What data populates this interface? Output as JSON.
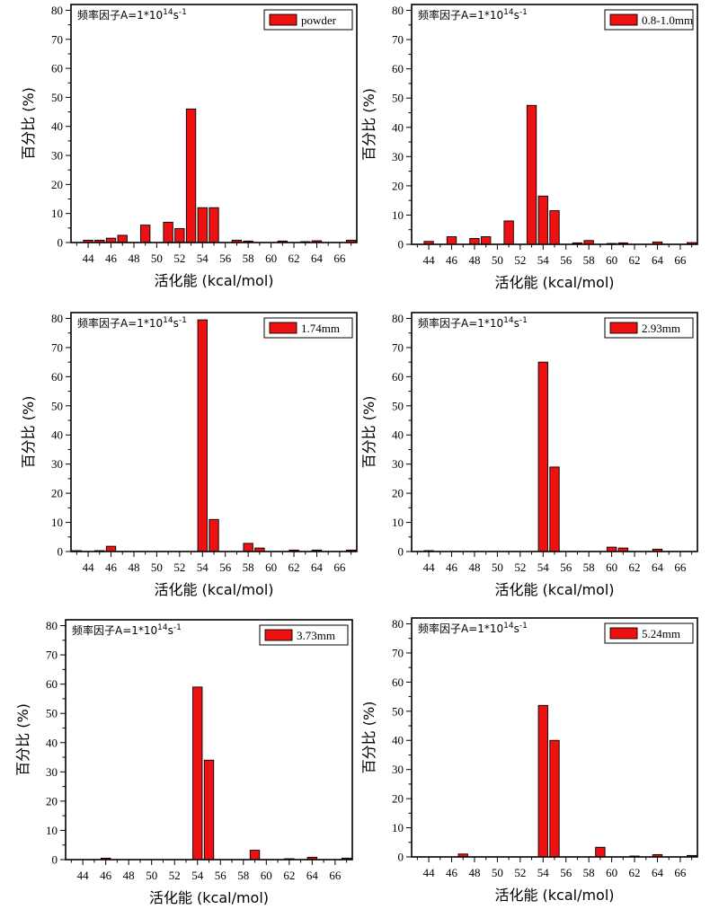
{
  "chart_data": [
    {
      "type": "bar",
      "annotation": "频率因子A=1*10",
      "annotation_exp1": "14",
      "annotation_unit": "s",
      "annotation_exp2": "-1",
      "legend": "powder",
      "xlabel": "活化能 (kcal/mol)",
      "ylabel": "百分比 (%)",
      "xlim": [
        42.5,
        67.5
      ],
      "ylim": [
        0,
        82
      ],
      "xticks": [
        44,
        46,
        48,
        50,
        52,
        54,
        56,
        58,
        60,
        62,
        64,
        66
      ],
      "yticks": [
        0,
        10,
        20,
        30,
        40,
        50,
        60,
        70,
        80
      ],
      "x": [
        44,
        45,
        46,
        47,
        49,
        51,
        52,
        53,
        54,
        55,
        57,
        58,
        61,
        63,
        64,
        67
      ],
      "values": [
        0.8,
        0.8,
        1.5,
        2.5,
        6,
        7,
        4.8,
        46,
        12,
        12,
        0.8,
        0.5,
        0.5,
        0.3,
        0.6,
        0.8
      ],
      "color": "#ee1111"
    },
    {
      "type": "bar",
      "annotation": "频率因子A=1*10",
      "annotation_exp1": "14",
      "annotation_unit": "s",
      "annotation_exp2": "-1",
      "legend": "0.8-1.0mm",
      "xlabel": "活化能 (kcal/mol)",
      "ylabel": "百分比 (%)",
      "xlim": [
        42.5,
        67.5
      ],
      "ylim": [
        0,
        82
      ],
      "xticks": [
        44,
        46,
        48,
        50,
        52,
        54,
        56,
        58,
        60,
        62,
        64,
        66
      ],
      "yticks": [
        0,
        10,
        20,
        30,
        40,
        50,
        60,
        70,
        80
      ],
      "x": [
        44,
        46,
        48,
        49,
        51,
        53,
        54,
        55,
        57,
        58,
        60,
        61,
        64,
        67
      ],
      "values": [
        1,
        2.6,
        2,
        2.6,
        8,
        47.5,
        16.5,
        11.5,
        0.5,
        1.3,
        0.3,
        0.5,
        0.8,
        0.6
      ],
      "color": "#ee1111"
    },
    {
      "type": "bar",
      "annotation": "频率因子A=1*10",
      "annotation_exp1": "14",
      "annotation_unit": "s",
      "annotation_exp2": "-1",
      "legend": "1.74mm",
      "xlabel": "活化能 (kcal/mol)",
      "ylabel": "百分比 (%)",
      "xlim": [
        42.5,
        67.5
      ],
      "ylim": [
        0,
        82
      ],
      "xticks": [
        44,
        46,
        48,
        50,
        52,
        54,
        56,
        58,
        60,
        62,
        64,
        66
      ],
      "yticks": [
        0,
        10,
        20,
        30,
        40,
        50,
        60,
        70,
        80
      ],
      "x": [
        43,
        45,
        46,
        54,
        55,
        58,
        59,
        62,
        64,
        67
      ],
      "values": [
        0.3,
        0.3,
        1.8,
        79.5,
        11,
        2.8,
        1.2,
        0.5,
        0.5,
        0.5
      ],
      "color": "#ee1111"
    },
    {
      "type": "bar",
      "annotation": "频率因子A=1*10",
      "annotation_exp1": "14",
      "annotation_unit": "s",
      "annotation_exp2": "-1",
      "legend": "2.93mm",
      "xlabel": "活化能 (kcal/mol)",
      "ylabel": "百分比 (%)",
      "xlim": [
        42.5,
        67.5
      ],
      "ylim": [
        0,
        82
      ],
      "xticks": [
        44,
        46,
        48,
        50,
        52,
        54,
        56,
        58,
        60,
        62,
        64,
        66
      ],
      "yticks": [
        0,
        10,
        20,
        30,
        40,
        50,
        60,
        70,
        80
      ],
      "x": [
        44,
        54,
        55,
        60,
        61,
        64
      ],
      "values": [
        0.3,
        65,
        29,
        1.5,
        1.2,
        0.8
      ],
      "color": "#ee1111"
    },
    {
      "type": "bar",
      "annotation": "频率因子A=1*10",
      "annotation_exp1": "14",
      "annotation_unit": "s",
      "annotation_exp2": "-1",
      "legend": "3.73mm",
      "xlabel": "活化能 (kcal/mol)",
      "ylabel": "百分比 (%)",
      "xlim": [
        42.5,
        67.5
      ],
      "ylim": [
        0,
        82
      ],
      "xticks": [
        44,
        46,
        48,
        50,
        52,
        54,
        56,
        58,
        60,
        62,
        64,
        66
      ],
      "yticks": [
        0,
        10,
        20,
        30,
        40,
        50,
        60,
        70,
        80
      ],
      "x": [
        46,
        54,
        55,
        59,
        62,
        64,
        67
      ],
      "values": [
        0.5,
        59,
        34,
        3.2,
        0.3,
        0.8,
        0.5
      ],
      "color": "#ee1111"
    },
    {
      "type": "bar",
      "annotation": "频率因子A=1*10",
      "annotation_exp1": "14",
      "annotation_unit": "s",
      "annotation_exp2": "-1",
      "legend": "5.24mm",
      "xlabel": "活化能 (kcal/mol)",
      "ylabel": "百分比 (%)",
      "xlim": [
        42.5,
        67.5
      ],
      "ylim": [
        0,
        82
      ],
      "xticks": [
        44,
        46,
        48,
        50,
        52,
        54,
        56,
        58,
        60,
        62,
        64,
        66
      ],
      "yticks": [
        0,
        10,
        20,
        30,
        40,
        50,
        60,
        70,
        80
      ],
      "x": [
        47,
        54,
        55,
        59,
        62,
        64,
        67
      ],
      "values": [
        1,
        52,
        40,
        3.3,
        0.3,
        0.8,
        0.5
      ],
      "color": "#ee1111"
    }
  ]
}
